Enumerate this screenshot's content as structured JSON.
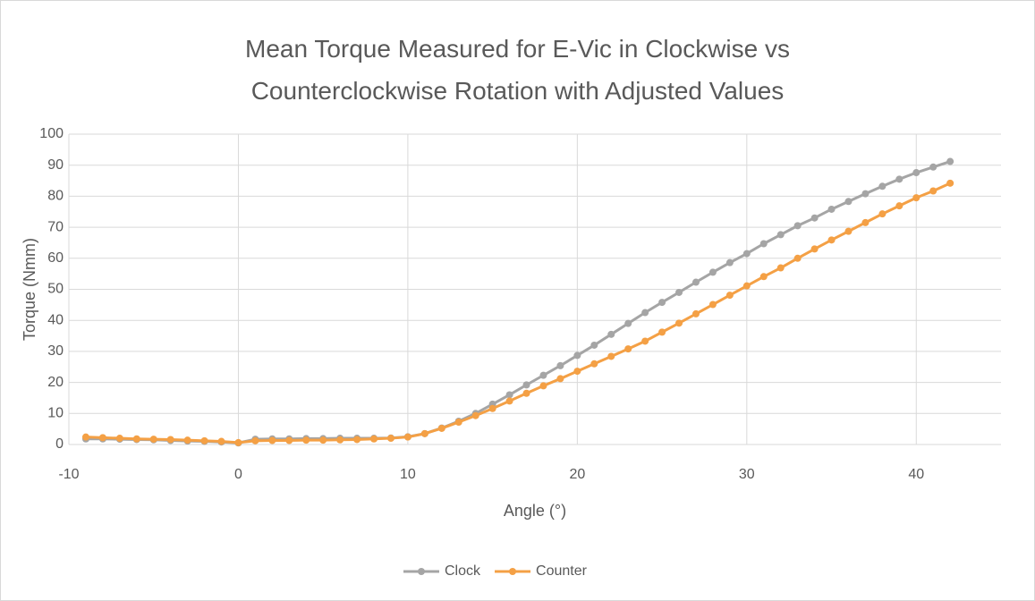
{
  "chart_data": {
    "type": "line",
    "title": "Mean Torque Measured for E-Vic in Clockwise vs Counterclockwise Rotation with Adjusted Values",
    "x_label": "Angle (°)",
    "y_label": "Torque (Nmm)",
    "x": [
      -9,
      -8,
      -7,
      -6,
      -5,
      -4,
      -3,
      -2,
      -1,
      0,
      1,
      2,
      3,
      4,
      5,
      6,
      7,
      8,
      9,
      10,
      11,
      12,
      13,
      14,
      15,
      16,
      17,
      18,
      19,
      20,
      21,
      22,
      23,
      24,
      25,
      26,
      27,
      28,
      29,
      30,
      31,
      32,
      33,
      34,
      35,
      36,
      37,
      38,
      39,
      40,
      41,
      42
    ],
    "series": [
      {
        "name": "Clock",
        "color": "#a5a5a5",
        "values": [
          1.8,
          1.8,
          1.7,
          1.6,
          1.5,
          1.3,
          1.1,
          1.0,
          0.8,
          0.5,
          1.7,
          1.8,
          1.8,
          1.9,
          1.9,
          2.0,
          2.0,
          2.0,
          2.1,
          2.5,
          3.5,
          5.3,
          7.5,
          10,
          13,
          16,
          19.2,
          22.3,
          25.4,
          28.7,
          32,
          35.5,
          39,
          42.5,
          45.8,
          49,
          52.3,
          55.5,
          58.6,
          61.5,
          64.7,
          67.6,
          70.5,
          73,
          75.8,
          78.3,
          80.8,
          83.2,
          85.5,
          87.6,
          89.4,
          91.2
        ]
      },
      {
        "name": "Counter",
        "color": "#f4a045",
        "values": [
          2.4,
          2.2,
          2.0,
          1.8,
          1.7,
          1.6,
          1.4,
          1.2,
          1.0,
          0.6,
          1.2,
          1.3,
          1.3,
          1.4,
          1.4,
          1.5,
          1.6,
          1.8,
          2.0,
          2.4,
          3.5,
          5.2,
          7.2,
          9.3,
          11.6,
          14,
          16.5,
          18.9,
          21.2,
          23.6,
          26,
          28.4,
          30.8,
          33.3,
          36.2,
          39.1,
          42.1,
          45.1,
          48.1,
          51.1,
          54.1,
          56.9,
          60,
          63,
          65.9,
          68.7,
          71.5,
          74.3,
          76.9,
          79.5,
          81.7,
          84.2
        ]
      }
    ],
    "xlim": [
      -10,
      45
    ],
    "xticks": [
      -10,
      0,
      10,
      20,
      30,
      40
    ],
    "ylim": [
      0,
      100
    ],
    "yticks": [
      0,
      10,
      20,
      30,
      40,
      50,
      60,
      70,
      80,
      90,
      100
    ],
    "grid": true,
    "legend": "bottom"
  }
}
